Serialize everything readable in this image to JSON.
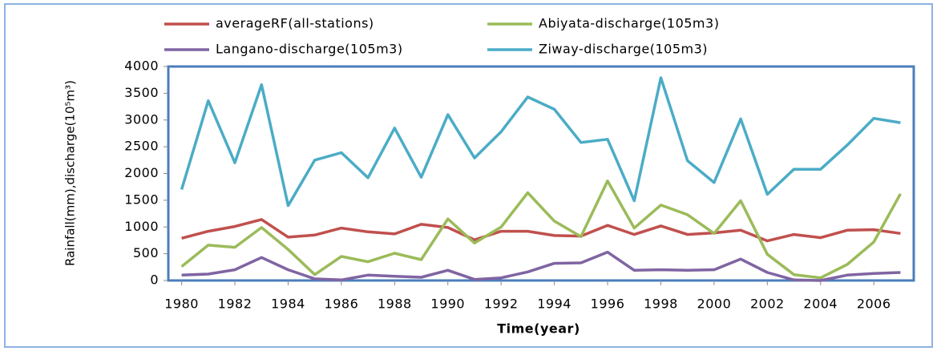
{
  "chart_data": {
    "type": "line",
    "x_label": "Time(year)",
    "y_label": "Rainfall(mm),discharge(10⁵m³)",
    "x": [
      1980,
      1981,
      1982,
      1983,
      1984,
      1985,
      1986,
      1987,
      1988,
      1989,
      1990,
      1991,
      1992,
      1993,
      1994,
      1995,
      1996,
      1997,
      1998,
      1999,
      2000,
      2001,
      2002,
      2003,
      2004,
      2005,
      2006,
      2007
    ],
    "series": [
      {
        "name": "averageRF(all-stations)",
        "color": "#c0504d",
        "values": [
          790,
          920,
          1010,
          1140,
          810,
          850,
          980,
          910,
          870,
          1050,
          990,
          760,
          920,
          920,
          840,
          830,
          1030,
          860,
          1020,
          860,
          890,
          940,
          740,
          860,
          800,
          940,
          950,
          880
        ]
      },
      {
        "name": "Abiyata-discharge(105m3)",
        "color": "#9bbb59",
        "values": [
          260,
          660,
          620,
          990,
          580,
          110,
          450,
          350,
          510,
          390,
          1150,
          700,
          1000,
          1640,
          1110,
          820,
          1860,
          980,
          1410,
          1230,
          880,
          1490,
          490,
          110,
          50,
          300,
          720,
          1620
        ]
      },
      {
        "name": "Langano-discharge(105m3)",
        "color": "#8064a2",
        "values": [
          100,
          120,
          200,
          430,
          200,
          30,
          10,
          100,
          80,
          60,
          190,
          20,
          50,
          160,
          320,
          330,
          530,
          190,
          200,
          190,
          200,
          400,
          150,
          10,
          0,
          100,
          130,
          150
        ]
      },
      {
        "name": "Ziway-discharge(105m3)",
        "color": "#4bacc6",
        "values": [
          1700,
          3360,
          2200,
          3660,
          1400,
          2250,
          2390,
          1920,
          2850,
          1930,
          3100,
          2290,
          2780,
          3430,
          3200,
          2580,
          2640,
          1490,
          3790,
          2240,
          1830,
          3020,
          1610,
          2080,
          2080,
          2530,
          3030,
          2950
        ]
      }
    ],
    "xlim": [
      1979.5,
      2007.5
    ],
    "xticks": [
      1980,
      1982,
      1984,
      1986,
      1988,
      1990,
      1992,
      1994,
      1996,
      1998,
      2000,
      2002,
      2004,
      2006
    ],
    "ylim": [
      0,
      4000
    ],
    "yticks": [
      0,
      500,
      1000,
      1500,
      2000,
      2500,
      3000,
      3500,
      4000
    ],
    "legend": "top"
  }
}
